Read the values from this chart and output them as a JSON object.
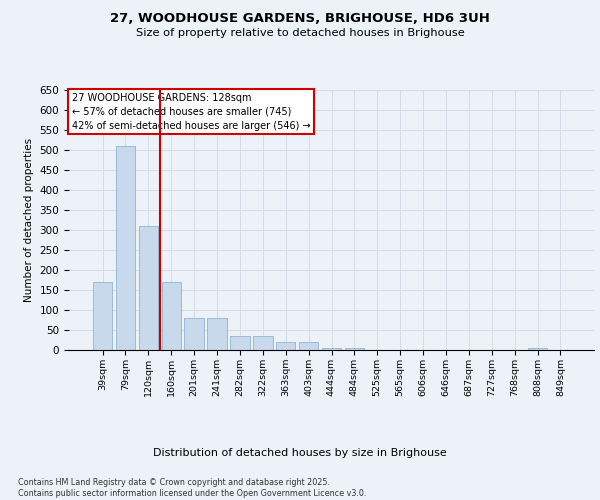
{
  "title_line1": "27, WOODHOUSE GARDENS, BRIGHOUSE, HD6 3UH",
  "title_line2": "Size of property relative to detached houses in Brighouse",
  "xlabel": "Distribution of detached houses by size in Brighouse",
  "ylabel": "Number of detached properties",
  "bar_values": [
    170,
    510,
    310,
    170,
    80,
    80,
    35,
    35,
    20,
    20,
    5,
    5,
    1,
    0,
    0,
    0,
    0,
    0,
    0,
    5,
    0
  ],
  "bar_labels": [
    "39sqm",
    "79sqm",
    "120sqm",
    "160sqm",
    "201sqm",
    "241sqm",
    "282sqm",
    "322sqm",
    "363sqm",
    "403sqm",
    "444sqm",
    "484sqm",
    "525sqm",
    "565sqm",
    "606sqm",
    "646sqm",
    "687sqm",
    "727sqm",
    "768sqm",
    "808sqm",
    "849sqm"
  ],
  "bar_color": "#c8d9ec",
  "bar_edge_color": "#8fb4d4",
  "grid_color": "#d4dce8",
  "ylim_max": 650,
  "yticks": [
    0,
    50,
    100,
    150,
    200,
    250,
    300,
    350,
    400,
    450,
    500,
    550,
    600,
    650
  ],
  "vline_x": 2.5,
  "vline_color": "#cc0000",
  "annotation_text": "27 WOODHOUSE GARDENS: 128sqm\n← 57% of detached houses are smaller (745)\n42% of semi-detached houses are larger (546) →",
  "annotation_box_edgecolor": "#cc0000",
  "annotation_bg": "white",
  "footnote": "Contains HM Land Registry data © Crown copyright and database right 2025.\nContains public sector information licensed under the Open Government Licence v3.0.",
  "background_color": "#edf2f8"
}
